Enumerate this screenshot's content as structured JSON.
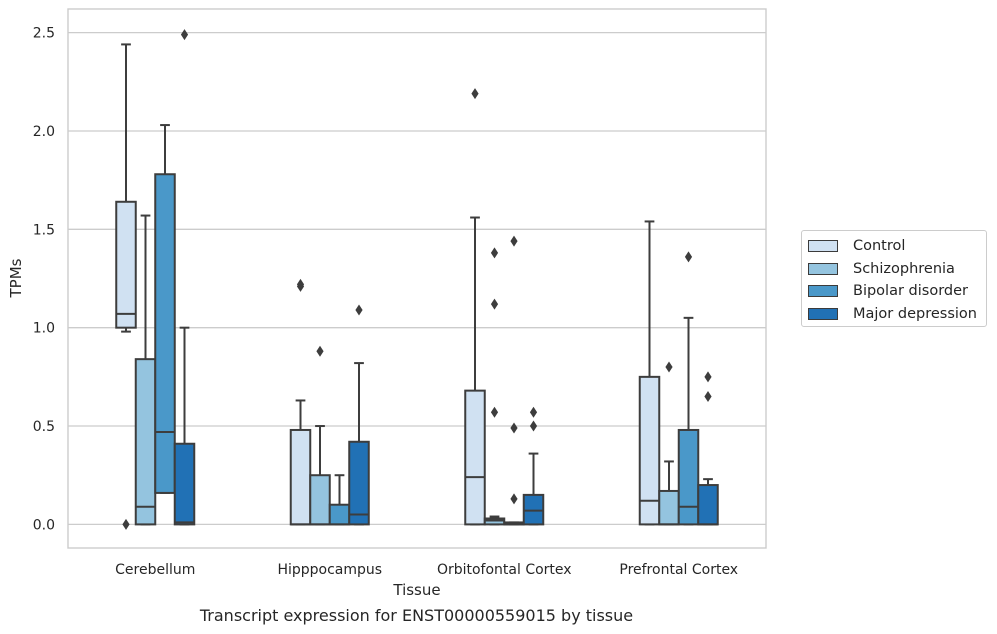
{
  "caption": "Transcript expression for ENST00000559015 by tissue",
  "chart_data": {
    "type": "box",
    "xlabel": "Tissue",
    "ylabel": "TPMs",
    "ylim": [
      -0.12,
      2.62
    ],
    "yticks": [
      0.0,
      0.5,
      1.0,
      1.5,
      2.0,
      2.5
    ],
    "ytick_labels": [
      "0.0",
      "0.5",
      "1.0",
      "1.5",
      "2.0",
      "2.5"
    ],
    "grid": true,
    "legend_position": "right",
    "categories": [
      "Cerebellum",
      "Hipppocampus",
      "Orbitofontal Cortex",
      "Prefrontal Cortex"
    ],
    "series": [
      {
        "name": "Control",
        "color": "#d0e1f2",
        "boxes": [
          {
            "whislo": 0.98,
            "q1": 1.0,
            "med": 1.07,
            "q3": 1.64,
            "whishi": 2.44,
            "fliers": [
              0.0
            ]
          },
          {
            "whislo": 0.0,
            "q1": 0.0,
            "med": 0.0,
            "q3": 0.48,
            "whishi": 0.63,
            "fliers": [
              1.21,
              1.22
            ]
          },
          {
            "whislo": 0.0,
            "q1": 0.0,
            "med": 0.24,
            "q3": 0.68,
            "whishi": 1.56,
            "fliers": [
              2.19
            ]
          },
          {
            "whislo": 0.0,
            "q1": 0.0,
            "med": 0.12,
            "q3": 0.75,
            "whishi": 1.54,
            "fliers": []
          }
        ]
      },
      {
        "name": "Schizophrenia",
        "color": "#94c4df",
        "boxes": [
          {
            "whislo": 0.0,
            "q1": 0.0,
            "med": 0.09,
            "q3": 0.84,
            "whishi": 1.57,
            "fliers": []
          },
          {
            "whislo": 0.0,
            "q1": 0.0,
            "med": 0.0,
            "q3": 0.25,
            "whishi": 0.5,
            "fliers": [
              0.88
            ]
          },
          {
            "whislo": 0.0,
            "q1": 0.0,
            "med": 0.02,
            "q3": 0.03,
            "whishi": 0.04,
            "fliers": [
              0.57,
              1.12,
              1.38
            ]
          },
          {
            "whislo": 0.0,
            "q1": 0.0,
            "med": 0.0,
            "q3": 0.17,
            "whishi": 0.32,
            "fliers": [
              0.8
            ]
          }
        ]
      },
      {
        "name": "Bipolar disorder",
        "color": "#4a98c9",
        "boxes": [
          {
            "whislo": 0.16,
            "q1": 0.16,
            "med": 0.47,
            "q3": 1.78,
            "whishi": 2.03,
            "fliers": []
          },
          {
            "whislo": 0.0,
            "q1": 0.0,
            "med": 0.0,
            "q3": 0.1,
            "whishi": 0.25,
            "fliers": []
          },
          {
            "whislo": 0.0,
            "q1": 0.0,
            "med": 0.0,
            "q3": 0.01,
            "whishi": 0.01,
            "fliers": [
              0.13,
              0.49,
              1.44
            ]
          },
          {
            "whislo": 0.0,
            "q1": 0.0,
            "med": 0.09,
            "q3": 0.48,
            "whishi": 1.05,
            "fliers": [
              1.36
            ]
          }
        ]
      },
      {
        "name": "Major depression",
        "color": "#2171b5",
        "boxes": [
          {
            "whislo": 0.0,
            "q1": 0.0,
            "med": 0.01,
            "q3": 0.41,
            "whishi": 1.0,
            "fliers": [
              2.49
            ]
          },
          {
            "whislo": 0.0,
            "q1": 0.0,
            "med": 0.05,
            "q3": 0.42,
            "whishi": 0.82,
            "fliers": [
              1.09
            ]
          },
          {
            "whislo": 0.0,
            "q1": 0.0,
            "med": 0.07,
            "q3": 0.15,
            "whishi": 0.36,
            "fliers": [
              0.5,
              0.57
            ]
          },
          {
            "whislo": 0.0,
            "q1": 0.0,
            "med": 0.0,
            "q3": 0.2,
            "whishi": 0.23,
            "fliers": [
              0.65,
              0.75
            ]
          }
        ]
      }
    ]
  }
}
